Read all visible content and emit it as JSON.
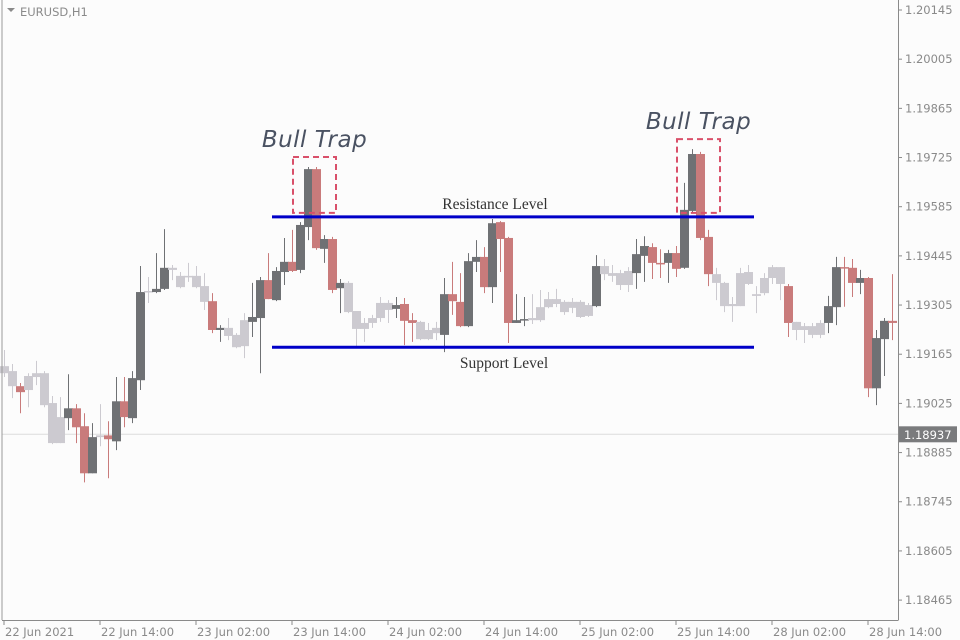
{
  "symbol_label": "EURUSD,H1",
  "chart_data": {
    "type": "candlestick",
    "symbol": "EURUSD",
    "timeframe": "H1",
    "ylim": [
      1.1842,
      1.2019
    ],
    "grid": false,
    "y_ticks": [
      "1.20145",
      "1.20005",
      "1.19865",
      "1.19725",
      "1.19585",
      "1.19445",
      "1.19305",
      "1.19165",
      "1.19025",
      "1.18885",
      "1.18745",
      "1.18605",
      "1.18465"
    ],
    "x_ticks": [
      {
        "label": "22 Jun 2021",
        "candle": 0
      },
      {
        "label": "22 Jun 14:00",
        "candle": 12
      },
      {
        "label": "23 Jun 02:00",
        "candle": 24
      },
      {
        "label": "23 Jun 14:00",
        "candle": 36
      },
      {
        "label": "24 Jun 02:00",
        "candle": 48
      },
      {
        "label": "24 Jun 14:00",
        "candle": 60
      },
      {
        "label": "25 Jun 02:00",
        "candle": 72
      },
      {
        "label": "25 Jun 14:00",
        "candle": 84
      },
      {
        "label": "28 Jun 02:00",
        "candle": 96
      },
      {
        "label": "28 Jun 14:00",
        "candle": 108
      }
    ],
    "current_price": {
      "value": 1.18937,
      "label": "1.18937"
    },
    "colors": {
      "d": "#6f7174",
      "r": "#c97b7b",
      "l": "#cccad0",
      "level_line": "#0000c8",
      "trap_box": "#d9506a",
      "current_price_bg": "#7a7b7d"
    },
    "candle_fields": [
      "open",
      "high",
      "low",
      "close",
      "color"
    ],
    "candles": [
      [
        1.19131,
        1.19177,
        1.191,
        1.19111,
        "l"
      ],
      [
        1.19117,
        1.19137,
        1.1904,
        1.19074,
        "l"
      ],
      [
        1.19074,
        1.19083,
        1.18997,
        1.19057,
        "r"
      ],
      [
        1.19063,
        1.19111,
        1.19014,
        1.19103,
        "l"
      ],
      [
        1.191,
        1.19146,
        1.19077,
        1.19111,
        "l"
      ],
      [
        1.19111,
        1.19117,
        1.19014,
        1.1902,
        "l"
      ],
      [
        1.19026,
        1.19046,
        1.18909,
        1.18912,
        "l"
      ],
      [
        1.18912,
        1.19043,
        1.18912,
        1.18986,
        "l"
      ],
      [
        1.18983,
        1.19108,
        1.18949,
        1.19011,
        "d"
      ],
      [
        1.19011,
        1.19023,
        1.18912,
        1.18957,
        "r"
      ],
      [
        1.1896,
        1.18997,
        1.188,
        1.18826,
        "r"
      ],
      [
        1.18826,
        1.18969,
        1.18826,
        1.18929,
        "d"
      ],
      [
        1.18929,
        1.19023,
        1.18903,
        1.18934,
        "l"
      ],
      [
        1.18934,
        1.18974,
        1.18812,
        1.18923,
        "r"
      ],
      [
        1.18917,
        1.191,
        1.18892,
        1.19031,
        "d"
      ],
      [
        1.19031,
        1.191,
        1.18957,
        1.18986,
        "r"
      ],
      [
        1.18983,
        1.19117,
        1.18969,
        1.19097,
        "d"
      ],
      [
        1.19091,
        1.19416,
        1.19063,
        1.19342,
        "d"
      ],
      [
        1.19342,
        1.19385,
        1.19311,
        1.19345,
        "l"
      ],
      [
        1.19342,
        1.19453,
        1.19339,
        1.19351,
        "d"
      ],
      [
        1.19351,
        1.19521,
        1.19348,
        1.19411,
        "d"
      ],
      [
        1.19411,
        1.19419,
        1.19376,
        1.19405,
        "l"
      ],
      [
        1.19388,
        1.19399,
        1.19353,
        1.19356,
        "l"
      ],
      [
        1.19385,
        1.19425,
        1.19371,
        1.19388,
        "l"
      ],
      [
        1.19388,
        1.19416,
        1.19353,
        1.19356,
        "l"
      ],
      [
        1.19359,
        1.19396,
        1.19291,
        1.19314,
        "l"
      ],
      [
        1.19316,
        1.19339,
        1.19225,
        1.19234,
        "r"
      ],
      [
        1.19234,
        1.19248,
        1.192,
        1.1924,
        "d"
      ],
      [
        1.1924,
        1.19268,
        1.19205,
        1.19217,
        "l"
      ],
      [
        1.1922,
        1.19225,
        1.19182,
        1.19185,
        "l"
      ],
      [
        1.19188,
        1.19282,
        1.19154,
        1.19262,
        "l"
      ],
      [
        1.19257,
        1.19368,
        1.19214,
        1.19271,
        "d"
      ],
      [
        1.19268,
        1.19385,
        1.19111,
        1.19376,
        "d"
      ],
      [
        1.19376,
        1.19453,
        1.19322,
        1.19322,
        "r"
      ],
      [
        1.19319,
        1.19413,
        1.19316,
        1.19402,
        "d"
      ],
      [
        1.19399,
        1.19496,
        1.19362,
        1.19428,
        "d"
      ],
      [
        1.19428,
        1.19519,
        1.19399,
        1.19402,
        "r"
      ],
      [
        1.19405,
        1.19541,
        1.19396,
        1.19533,
        "d"
      ],
      [
        1.19527,
        1.19698,
        1.1949,
        1.19692,
        "d"
      ],
      [
        1.19692,
        1.19698,
        1.19462,
        1.19467,
        "r"
      ],
      [
        1.19465,
        1.19504,
        1.19425,
        1.19493,
        "d"
      ],
      [
        1.19493,
        1.19499,
        1.19339,
        1.19348,
        "r"
      ],
      [
        1.19353,
        1.19379,
        1.19282,
        1.19368,
        "d"
      ],
      [
        1.19368,
        1.19373,
        1.19282,
        1.19285,
        "l"
      ],
      [
        1.19288,
        1.19288,
        1.19188,
        1.19237,
        "l"
      ],
      [
        1.19237,
        1.19268,
        1.192,
        1.19254,
        "l"
      ],
      [
        1.19254,
        1.19277,
        1.1924,
        1.19268,
        "l"
      ],
      [
        1.19268,
        1.19328,
        1.19257,
        1.19311,
        "l"
      ],
      [
        1.19311,
        1.19319,
        1.19254,
        1.19291,
        "l"
      ],
      [
        1.19294,
        1.19328,
        1.19268,
        1.19305,
        "d"
      ],
      [
        1.19308,
        1.19325,
        1.19191,
        1.1926,
        "r"
      ],
      [
        1.19262,
        1.19282,
        1.192,
        1.19254,
        "r"
      ],
      [
        1.19257,
        1.1926,
        1.19205,
        1.19208,
        "l"
      ],
      [
        1.19208,
        1.19254,
        1.19205,
        1.19234,
        "l"
      ],
      [
        1.19225,
        1.19257,
        1.19205,
        1.1924,
        "l"
      ],
      [
        1.1922,
        1.19382,
        1.19171,
        1.19336,
        "d"
      ],
      [
        1.19336,
        1.19428,
        1.19277,
        1.19316,
        "r"
      ],
      [
        1.19314,
        1.19396,
        1.19242,
        1.19245,
        "r"
      ],
      [
        1.19245,
        1.19453,
        1.19242,
        1.1943,
        "d"
      ],
      [
        1.19428,
        1.1949,
        1.19399,
        1.19442,
        "d"
      ],
      [
        1.19442,
        1.1947,
        1.19339,
        1.19356,
        "r"
      ],
      [
        1.19356,
        1.1955,
        1.19311,
        1.19538,
        "d"
      ],
      [
        1.19541,
        1.19544,
        1.19399,
        1.19493,
        "r"
      ],
      [
        1.19496,
        1.19499,
        1.19197,
        1.19254,
        "r"
      ],
      [
        1.19254,
        1.19336,
        1.19254,
        1.19262,
        "d"
      ],
      [
        1.19262,
        1.19328,
        1.19245,
        1.19265,
        "d"
      ],
      [
        1.19262,
        1.19336,
        1.19251,
        1.19268,
        "l"
      ],
      [
        1.19262,
        1.19348,
        1.19257,
        1.19299,
        "l"
      ],
      [
        1.19299,
        1.19342,
        1.19296,
        1.19322,
        "l"
      ],
      [
        1.19322,
        1.19351,
        1.19299,
        1.19308,
        "l"
      ],
      [
        1.19314,
        1.19319,
        1.19277,
        1.19285,
        "l"
      ],
      [
        1.19297,
        1.19325,
        1.19282,
        1.19314,
        "l"
      ],
      [
        1.19314,
        1.19319,
        1.19268,
        1.19271,
        "l"
      ],
      [
        1.19274,
        1.19311,
        1.19271,
        1.19305,
        "l"
      ],
      [
        1.19302,
        1.19447,
        1.19299,
        1.19416,
        "d"
      ],
      [
        1.19416,
        1.19436,
        1.19376,
        1.19393,
        "l"
      ],
      [
        1.19396,
        1.19419,
        1.19371,
        1.19388,
        "l"
      ],
      [
        1.19396,
        1.19405,
        1.19348,
        1.19362,
        "l"
      ],
      [
        1.19362,
        1.19413,
        1.19342,
        1.19402,
        "l"
      ],
      [
        1.19396,
        1.19493,
        1.19351,
        1.1945,
        "d"
      ],
      [
        1.19445,
        1.19501,
        1.19371,
        1.19473,
        "d"
      ],
      [
        1.1947,
        1.19481,
        1.19379,
        1.19425,
        "r"
      ],
      [
        1.19425,
        1.19464,
        1.19382,
        1.19422,
        "r"
      ],
      [
        1.19425,
        1.19462,
        1.19368,
        1.19453,
        "d"
      ],
      [
        1.19453,
        1.19473,
        1.19385,
        1.19408,
        "r"
      ],
      [
        1.19411,
        1.19653,
        1.19408,
        1.19576,
        "d"
      ],
      [
        1.19573,
        1.19749,
        1.19567,
        1.19735,
        "d"
      ],
      [
        1.19735,
        1.19741,
        1.1949,
        1.19496,
        "r"
      ],
      [
        1.19499,
        1.19519,
        1.19359,
        1.19393,
        "r"
      ],
      [
        1.19393,
        1.19411,
        1.19319,
        1.19368,
        "l"
      ],
      [
        1.19368,
        1.19371,
        1.19285,
        1.19302,
        "l"
      ],
      [
        1.19302,
        1.19328,
        1.19257,
        1.19308,
        "l"
      ],
      [
        1.19302,
        1.19411,
        1.19302,
        1.19396,
        "l"
      ],
      [
        1.19399,
        1.19419,
        1.19362,
        1.19365,
        "l"
      ],
      [
        1.19336,
        1.19359,
        1.19282,
        1.19331,
        "l"
      ],
      [
        1.19339,
        1.19396,
        1.19333,
        1.19382,
        "l"
      ],
      [
        1.19382,
        1.19419,
        1.19365,
        1.19413,
        "l"
      ],
      [
        1.19413,
        1.19413,
        1.19319,
        1.19365,
        "l"
      ],
      [
        1.19359,
        1.19365,
        1.19214,
        1.19254,
        "r"
      ],
      [
        1.19257,
        1.19257,
        1.19205,
        1.19234,
        "l"
      ],
      [
        1.19234,
        1.19254,
        1.19197,
        1.19245,
        "l"
      ],
      [
        1.19245,
        1.19254,
        1.19211,
        1.1922,
        "l"
      ],
      [
        1.1922,
        1.19262,
        1.19211,
        1.19254,
        "l"
      ],
      [
        1.19254,
        1.19331,
        1.19225,
        1.19302,
        "d"
      ],
      [
        1.19299,
        1.19442,
        1.19248,
        1.19413,
        "d"
      ],
      [
        1.19413,
        1.19442,
        1.193,
        1.19411,
        "r"
      ],
      [
        1.19411,
        1.19436,
        1.19328,
        1.19368,
        "r"
      ],
      [
        1.19368,
        1.19405,
        1.19336,
        1.19382,
        "d"
      ],
      [
        1.19382,
        1.19385,
        1.19043,
        1.19068,
        "r"
      ],
      [
        1.19068,
        1.19234,
        1.1902,
        1.19211,
        "d"
      ],
      [
        1.19208,
        1.19268,
        1.19103,
        1.1926,
        "d"
      ],
      [
        1.1926,
        1.19393,
        1.19205,
        1.19254,
        "r"
      ]
    ],
    "annotations": {
      "resistance": {
        "label": "Resistance Level",
        "price": 1.19556
      },
      "support": {
        "label": "Support Level",
        "price": 1.19185
      },
      "bull_traps": [
        {
          "label": "Bull Trap",
          "candles": [
            38,
            39
          ]
        },
        {
          "label": "Bull Trap",
          "candles": [
            86,
            87
          ]
        }
      ]
    }
  }
}
